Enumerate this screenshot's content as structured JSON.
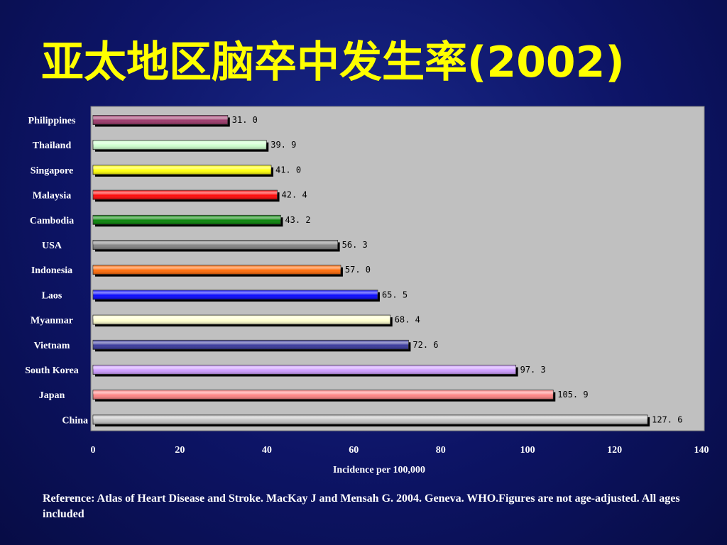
{
  "slide": {
    "title": "亚太地区脑卒中发生率(2002)",
    "reference": "Reference: Atlas of Heart Disease and Stroke.  MacKay J and Mensah G. 2004.  Geneva.  WHO.Figures are not age-adjusted.  All ages included"
  },
  "chart_data": {
    "type": "bar",
    "orientation": "horizontal",
    "title": "亚太地区脑卒中发生率(2002)",
    "xlabel": "Incidence per 100,000",
    "ylabel": "",
    "xlim": [
      0,
      140
    ],
    "xticks": [
      0,
      20,
      40,
      60,
      80,
      100,
      120,
      140
    ],
    "xtick_labels": [
      "0",
      "20",
      "40",
      "60",
      "80",
      "100",
      "120",
      "140"
    ],
    "grid": false,
    "plot_background": "#c0c0c0",
    "categories": [
      "Philippines",
      "Thailand",
      "Singapore",
      "Malaysia",
      "Cambodia",
      "USA",
      "Indonesia",
      "Laos",
      "Myanmar",
      "Vietnam",
      "South Korea",
      "Japan",
      "China"
    ],
    "values": [
      31.0,
      39.9,
      41.0,
      42.4,
      43.2,
      56.3,
      57.0,
      65.5,
      68.4,
      72.6,
      97.3,
      105.9,
      127.6
    ],
    "value_labels": [
      "31. 0",
      "39. 9",
      "41. 0",
      "42. 4",
      "43. 2",
      "56. 3",
      "57. 0",
      "65. 5",
      "68. 4",
      "72. 6",
      "97. 3",
      "105. 9",
      "127. 6"
    ],
    "bar_colors": [
      "#993366",
      "#ccffcc",
      "#ffff00",
      "#ff0000",
      "#008000",
      "#808080",
      "#ff6600",
      "#0000ff",
      "#ffffcc",
      "#333399",
      "#cc99ff",
      "#ff8080",
      "#c0c0c0"
    ],
    "highlight": {
      "USA": {
        "label_color": "#ffff00",
        "value_color": "#000099"
      },
      "China": {
        "label_color": "#ffff00",
        "value_color": "#000099"
      }
    }
  }
}
